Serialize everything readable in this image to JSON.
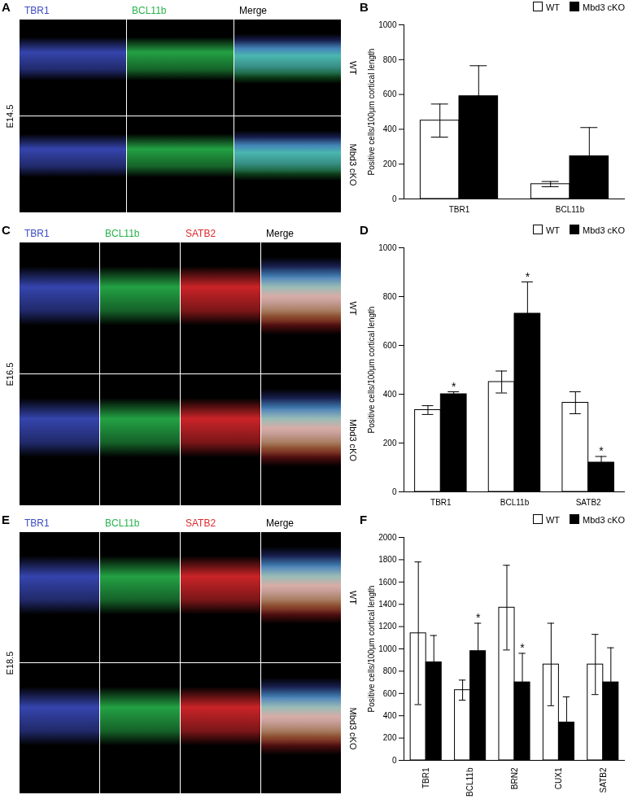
{
  "panels": [
    {
      "label": "A",
      "stage": "E14.5",
      "conditions": [
        "WT",
        "Mbd3 cKO"
      ],
      "channels": [
        {
          "name": "TBR1",
          "color": "#3b4cc0"
        },
        {
          "name": "BCL11b",
          "color": "#27b34b"
        },
        {
          "name": "Merge"
        }
      ]
    },
    {
      "label": "C",
      "stage": "E16.5",
      "conditions": [
        "WT",
        "Mbd3 cKO"
      ],
      "channels": [
        {
          "name": "TBR1",
          "color": "#3b4cc0"
        },
        {
          "name": "BCL11b",
          "color": "#27b34b"
        },
        {
          "name": "SATB2",
          "color": "#e0282c"
        },
        {
          "name": "Merge"
        }
      ]
    },
    {
      "label": "E",
      "stage": "E18.5",
      "conditions": [
        "WT",
        "Mbd3 cKO"
      ],
      "channels": [
        {
          "name": "TBR1",
          "color": "#3b4cc0"
        },
        {
          "name": "BCL11b",
          "color": "#27b34b"
        },
        {
          "name": "SATB2",
          "color": "#e0282c"
        },
        {
          "name": "Merge"
        }
      ]
    }
  ],
  "chart_data": [
    {
      "panel": "B",
      "type": "bar",
      "ylabel": "Positive cells/100μm cortical length",
      "categories": [
        "TBR1",
        "BCL11b"
      ],
      "series": [
        {
          "name": "WT",
          "color": "#ffffff",
          "values": [
            450,
            85
          ],
          "errors": [
            95,
            15
          ]
        },
        {
          "name": "Mbd3 cKO",
          "color": "#000000",
          "values": [
            590,
            245
          ],
          "errors": [
            175,
            165
          ]
        }
      ],
      "ylim": [
        0,
        1000
      ],
      "yticks": [
        0,
        200,
        400,
        600,
        800,
        1000
      ],
      "legend": "top-right",
      "annotations": []
    },
    {
      "panel": "D",
      "type": "bar",
      "ylabel": "Positive cells/100μm cortical length",
      "categories": [
        "TBR1",
        "BCL11b",
        "SATB2"
      ],
      "series": [
        {
          "name": "WT",
          "color": "#ffffff",
          "values": [
            335,
            450,
            365
          ],
          "errors": [
            18,
            45,
            45
          ]
        },
        {
          "name": "Mbd3 cKO",
          "color": "#000000",
          "values": [
            400,
            730,
            120
          ],
          "errors": [
            10,
            130,
            25
          ]
        }
      ],
      "ylim": [
        0,
        1000
      ],
      "yticks": [
        0,
        200,
        400,
        600,
        800,
        1000
      ],
      "legend": "top-right",
      "annotations": [
        {
          "category": "TBR1",
          "series": "Mbd3 cKO",
          "text": "*"
        },
        {
          "category": "BCL11b",
          "series": "Mbd3 cKO",
          "text": "*"
        },
        {
          "category": "SATB2",
          "series": "Mbd3 cKO",
          "text": "*"
        }
      ]
    },
    {
      "panel": "F",
      "type": "bar",
      "ylabel": "Positive cells/100μm cortical length",
      "categories": [
        "TBR1",
        "BCL11b",
        "BRN2",
        "CUX1",
        "SATB2"
      ],
      "series": [
        {
          "name": "WT",
          "color": "#ffffff",
          "values": [
            1140,
            630,
            1370,
            860,
            860
          ],
          "errors": [
            640,
            90,
            380,
            370,
            270
          ]
        },
        {
          "name": "Mbd3 cKO",
          "color": "#000000",
          "values": [
            880,
            980,
            700,
            340,
            700
          ],
          "errors": [
            240,
            250,
            260,
            230,
            310
          ]
        }
      ],
      "ylim": [
        0,
        2000
      ],
      "yticks": [
        0,
        200,
        400,
        600,
        800,
        1000,
        1200,
        1400,
        1600,
        1800,
        2000
      ],
      "legend": "top-right",
      "annotations": [
        {
          "category": "BCL11b",
          "series": "Mbd3 cKO",
          "text": "*"
        },
        {
          "category": "BRN2",
          "series": "Mbd3 cKO",
          "text": "*"
        }
      ]
    }
  ]
}
